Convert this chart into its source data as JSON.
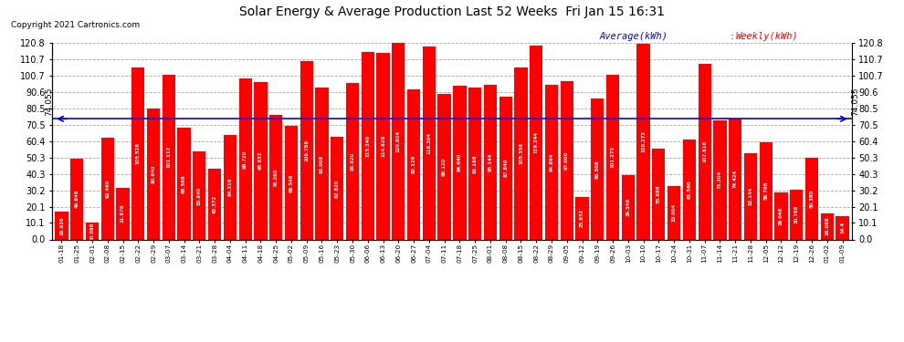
{
  "title": "Solar Energy & Average Production Last 52 Weeks  Fri Jan 15 16:31",
  "copyright": "Copyright 2021 Cartronics.com",
  "average_value": 74.055,
  "bar_color": "#ff0000",
  "avg_line_color": "#0000ff",
  "yticks": [
    0.0,
    10.1,
    20.1,
    30.2,
    40.3,
    50.3,
    60.4,
    70.5,
    80.5,
    90.6,
    100.7,
    110.7,
    120.8
  ],
  "ylim_max": 120.8,
  "x_labels": [
    "01-18",
    "01-25",
    "02-01",
    "02-08",
    "02-15",
    "02-22",
    "02-29",
    "03-07",
    "03-14",
    "03-21",
    "03-28",
    "04-04",
    "04-11",
    "04-18",
    "04-25",
    "05-02",
    "05-09",
    "05-16",
    "05-23",
    "05-30",
    "06-06",
    "06-13",
    "06-20",
    "06-27",
    "07-04",
    "07-11",
    "07-18",
    "07-25",
    "08-01",
    "08-08",
    "08-15",
    "08-22",
    "08-29",
    "09-05",
    "09-12",
    "09-19",
    "09-26",
    "10-03",
    "10-10",
    "10-17",
    "10-24",
    "10-31",
    "11-07",
    "11-14",
    "11-21",
    "11-28",
    "12-05",
    "12-12",
    "12-19",
    "12-26",
    "01-02",
    "01-09"
  ],
  "values": [
    16.936,
    49.648,
    10.096,
    62.46,
    31.676,
    105.528,
    80.64,
    101.112,
    68.568,
    53.84,
    43.372,
    64.316,
    98.72,
    96.632,
    76.36,
    69.548,
    109.788,
    93.008,
    62.82,
    95.92,
    115.24,
    114.828,
    120.804,
    92.128,
    118.304,
    89.12,
    94.64,
    93.168,
    95.144,
    87.84,
    105.356,
    119.244,
    94.864,
    97.0,
    25.932,
    86.508,
    101.272,
    39.548,
    120.272,
    55.888,
    33.004,
    61.56,
    107.816,
    73.304,
    74.424,
    53.144,
    59.768,
    29.048,
    30.768,
    50.38,
    16.068,
    14.4
  ],
  "val_labels": [
    "16.936",
    "49.648",
    "10.096",
    "62.460",
    "31.676",
    "105.528",
    "80.640",
    "101.112",
    "68.568",
    "53.840",
    "43.372",
    "64.316",
    "98.720",
    "96.632",
    "76.360",
    "69.548",
    "109.788",
    "93.008",
    "62.820",
    "95.920",
    "115.240",
    "114.828",
    "120.804",
    "92.128",
    "118.304",
    "89.120",
    "94.640",
    "93.168",
    "95.144",
    "87.840",
    "105.356",
    "119.244",
    "94.864",
    "97.000",
    "25.932",
    "86.508",
    "101.272",
    "39.548",
    "120.272",
    "55.888",
    "33.004",
    "61.560",
    "107.816",
    "73.304",
    "74.424",
    "53.144",
    "59.768",
    "29.048",
    "30.768",
    "50.380",
    "16.068",
    "14.4"
  ]
}
